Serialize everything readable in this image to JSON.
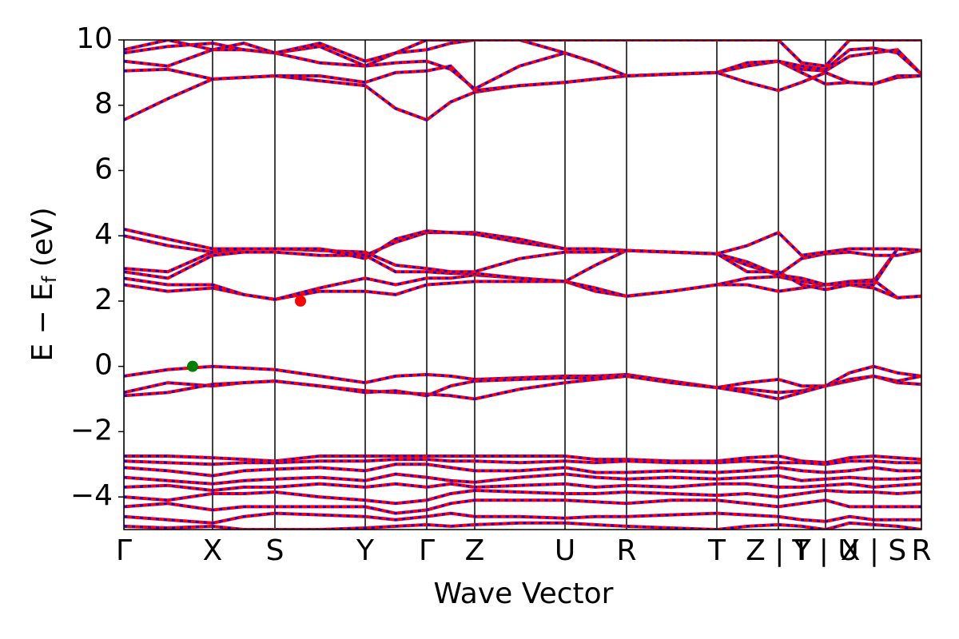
{
  "chart_data": {
    "type": "line",
    "xlabel": "Wave Vector",
    "ylabel": "E − E",
    "ylabel_sub": "f",
    "ylabel_unit": " (eV)",
    "xlim": [
      0,
      998
    ],
    "ylim": [
      -5,
      10
    ],
    "xticks": [
      {
        "value": 0,
        "label": "Γ"
      },
      {
        "value": 111,
        "label": "X"
      },
      {
        "value": 189,
        "label": "S"
      },
      {
        "value": 302,
        "label": "Y"
      },
      {
        "value": 379,
        "label": "Γ"
      },
      {
        "value": 439,
        "label": "Z"
      },
      {
        "value": 552,
        "label": "U"
      },
      {
        "value": 629,
        "label": "R"
      },
      {
        "value": 742,
        "label": "T"
      },
      {
        "value": 819,
        "label": "Z | Y"
      },
      {
        "value": 878,
        "label": "T | U"
      },
      {
        "value": 938,
        "label": "X | S"
      },
      {
        "value": 998,
        "label": "R"
      }
    ],
    "yticks": [
      {
        "value": -4,
        "label": "−4"
      },
      {
        "value": -2,
        "label": "−2"
      },
      0,
      2,
      4,
      6,
      8,
      10
    ],
    "color": "#ff0000",
    "dash_color": "#0000ff",
    "kline_color": "#000000",
    "x": [
      0,
      55,
      111,
      150,
      189,
      245,
      302,
      340,
      379,
      409,
      439,
      495,
      552,
      590,
      629,
      685,
      742,
      780,
      819,
      848,
      878,
      908,
      938,
      968,
      998
    ],
    "series": [
      {
        "values": [
          -0.3,
          -0.1,
          0,
          -0.05,
          -0.1,
          -0.3,
          -0.5,
          -0.3,
          -0.25,
          -0.3,
          -0.4,
          -0.35,
          -0.3,
          -0.3,
          -0.25,
          -0.45,
          -0.65,
          -0.5,
          -0.4,
          -0.6,
          -0.6,
          -0.2,
          0,
          -0.2,
          -0.3
        ]
      },
      {
        "values": [
          -0.8,
          -0.5,
          -0.6,
          -0.5,
          -0.45,
          -0.6,
          -0.75,
          -0.8,
          -0.85,
          -0.9,
          -1.0,
          -0.7,
          -0.5,
          -0.4,
          -0.3,
          -0.5,
          -0.65,
          -0.7,
          -0.8,
          -0.75,
          -0.6,
          -0.45,
          -0.3,
          -0.5,
          -0.55
        ]
      },
      {
        "values": [
          -0.9,
          -0.8,
          -0.55,
          -0.5,
          -0.45,
          -0.6,
          -0.8,
          -0.75,
          -0.9,
          -0.6,
          -0.45,
          -0.4,
          -0.35,
          -0.35,
          -0.3,
          -0.5,
          -0.65,
          -0.8,
          -1.0,
          -0.8,
          -0.6,
          -0.4,
          -0.3,
          -0.45,
          -0.3
        ]
      },
      {
        "values": [
          2.5,
          2.3,
          2.4,
          2.2,
          2.05,
          2.3,
          2.3,
          2.2,
          2.5,
          2.55,
          2.6,
          2.6,
          2.6,
          2.3,
          2.15,
          2.3,
          2.5,
          2.5,
          2.3,
          2.4,
          2.5,
          2.5,
          2.4,
          2.1,
          2.15
        ]
      },
      {
        "values": [
          2.7,
          2.5,
          2.5,
          2.2,
          2.05,
          2.4,
          2.7,
          2.5,
          2.7,
          2.7,
          2.8,
          2.7,
          2.6,
          2.4,
          2.15,
          2.3,
          2.5,
          2.7,
          2.75,
          2.6,
          2.5,
          2.6,
          2.65,
          2.1,
          2.15
        ]
      },
      {
        "values": [
          2.9,
          2.7,
          3.4,
          3.5,
          3.5,
          3.4,
          3.4,
          2.9,
          2.9,
          2.85,
          2.85,
          2.7,
          2.6,
          3.1,
          3.55,
          3.5,
          3.45,
          3.1,
          2.8,
          3.3,
          3.45,
          3.5,
          3.4,
          3.4,
          3.55
        ]
      },
      {
        "values": [
          3.0,
          2.9,
          3.5,
          3.6,
          3.6,
          3.55,
          3.5,
          3.1,
          3.0,
          2.9,
          2.9,
          3.3,
          3.5,
          3.5,
          3.55,
          3.5,
          3.45,
          3.7,
          4.1,
          3.4,
          3.5,
          3.6,
          3.6,
          3.6,
          3.55
        ]
      },
      {
        "values": [
          4.0,
          3.7,
          3.5,
          3.6,
          3.6,
          3.6,
          3.4,
          3.8,
          4.1,
          4.1,
          4.1,
          3.9,
          3.6,
          3.6,
          3.55,
          3.5,
          3.45,
          3.2,
          2.8,
          2.7,
          2.5,
          2.6,
          2.6,
          3.6,
          3.55
        ]
      },
      {
        "values": [
          4.2,
          3.9,
          3.6,
          3.6,
          3.6,
          3.6,
          3.3,
          3.9,
          4.15,
          4.1,
          4.05,
          3.8,
          3.6,
          3.6,
          3.55,
          3.5,
          3.45,
          2.9,
          2.9,
          2.5,
          2.35,
          2.5,
          2.5,
          3.6,
          3.55
        ]
      },
      {
        "values": [
          7.55,
          8.2,
          8.8,
          8.85,
          8.9,
          8.75,
          8.6,
          7.9,
          7.55,
          8.1,
          8.4,
          8.6,
          8.7,
          8.8,
          8.9,
          8.95,
          9.0,
          8.7,
          8.45,
          8.7,
          9.0,
          8.7,
          8.65,
          8.85,
          8.9
        ]
      },
      {
        "values": [
          9.05,
          9.1,
          8.8,
          8.85,
          8.9,
          8.9,
          8.7,
          9.0,
          9.05,
          9.2,
          8.45,
          8.6,
          8.7,
          8.8,
          8.9,
          8.95,
          9.0,
          9.2,
          9.35,
          9.0,
          8.65,
          8.7,
          8.65,
          8.9,
          8.9
        ]
      },
      {
        "values": [
          9.35,
          9.2,
          9.7,
          9.7,
          9.6,
          9.3,
          9.2,
          9.3,
          9.35,
          9.1,
          8.5,
          9.2,
          9.6,
          9.3,
          8.9,
          8.95,
          9.0,
          9.3,
          9.35,
          9.1,
          9.05,
          9.5,
          9.6,
          9.7,
          8.95
        ]
      },
      {
        "values": [
          9.6,
          9.8,
          9.9,
          9.7,
          9.6,
          9.8,
          9.2,
          9.6,
          9.7,
          9.9,
          10,
          10,
          9.6,
          9.3,
          8.9,
          8.95,
          9.0,
          9.3,
          9.35,
          9.2,
          9.1,
          9.7,
          9.75,
          9.6,
          8.95
        ]
      },
      {
        "values": [
          9.7,
          10,
          9.7,
          9.9,
          9.6,
          9.9,
          9.35,
          9.6,
          10,
          10,
          10,
          10,
          10,
          10,
          10,
          10,
          10,
          10,
          10,
          9.3,
          9.2,
          10,
          10,
          10,
          10
        ]
      },
      {
        "values": [
          -2.75,
          -2.75,
          -2.8,
          -2.85,
          -2.9,
          -2.75,
          -2.75,
          -2.75,
          -2.75,
          -2.75,
          -2.75,
          -2.75,
          -2.75,
          -2.85,
          -2.85,
          -2.9,
          -2.9,
          -2.8,
          -2.75,
          -2.9,
          -2.95,
          -2.8,
          -2.75,
          -2.8,
          -2.85
        ]
      },
      {
        "values": [
          -2.9,
          -2.95,
          -3.0,
          -2.95,
          -2.95,
          -2.9,
          -2.9,
          -2.85,
          -2.85,
          -2.9,
          -2.9,
          -2.95,
          -2.9,
          -2.95,
          -2.9,
          -2.95,
          -2.95,
          -2.9,
          -2.95,
          -2.95,
          -3.0,
          -2.9,
          -2.9,
          -2.95,
          -2.95
        ]
      },
      {
        "values": [
          -3.1,
          -3.2,
          -3.35,
          -3.2,
          -3.15,
          -3.1,
          -3.2,
          -3.0,
          -3.0,
          -3.1,
          -3.2,
          -3.2,
          -3.1,
          -3.25,
          -3.25,
          -3.2,
          -3.25,
          -3.2,
          -3.1,
          -3.2,
          -3.25,
          -3.2,
          -3.1,
          -3.2,
          -3.2
        ]
      },
      {
        "values": [
          -3.4,
          -3.5,
          -3.6,
          -3.5,
          -3.45,
          -3.4,
          -3.5,
          -3.3,
          -3.4,
          -3.5,
          -3.55,
          -3.4,
          -3.3,
          -3.4,
          -3.45,
          -3.4,
          -3.45,
          -3.4,
          -3.35,
          -3.5,
          -3.45,
          -3.4,
          -3.45,
          -3.45,
          -3.4
        ]
      },
      {
        "values": [
          -3.7,
          -3.65,
          -3.8,
          -3.7,
          -3.7,
          -3.6,
          -3.7,
          -3.6,
          -3.7,
          -3.6,
          -3.7,
          -3.65,
          -3.6,
          -3.7,
          -3.65,
          -3.7,
          -3.6,
          -3.6,
          -3.7,
          -3.7,
          -3.65,
          -3.6,
          -3.7,
          -3.65,
          -3.6
        ]
      },
      {
        "values": [
          -4.0,
          -4.1,
          -3.9,
          -3.9,
          -3.85,
          -4.0,
          -4.1,
          -4.2,
          -4.1,
          -3.9,
          -3.8,
          -3.85,
          -3.9,
          -3.9,
          -3.85,
          -3.9,
          -3.95,
          -3.9,
          -4.0,
          -3.9,
          -3.8,
          -3.85,
          -3.85,
          -3.9,
          -3.85
        ]
      },
      {
        "values": [
          -4.3,
          -4.2,
          -4.4,
          -4.3,
          -4.3,
          -4.3,
          -4.3,
          -4.5,
          -4.4,
          -4.2,
          -4.1,
          -4.1,
          -4.1,
          -4.15,
          -4.2,
          -4.1,
          -4.1,
          -4.2,
          -4.3,
          -4.2,
          -4.1,
          -4.3,
          -4.3,
          -4.3,
          -4.3
        ]
      },
      {
        "values": [
          -4.6,
          -4.7,
          -4.8,
          -4.6,
          -4.5,
          -4.55,
          -4.6,
          -4.7,
          -4.6,
          -4.5,
          -4.6,
          -4.6,
          -4.65,
          -4.6,
          -4.6,
          -4.55,
          -4.5,
          -4.55,
          -4.6,
          -4.7,
          -4.75,
          -4.6,
          -4.7,
          -4.7,
          -4.7
        ]
      },
      {
        "values": [
          -4.9,
          -4.95,
          -4.9,
          -5,
          -5,
          -5,
          -4.95,
          -4.9,
          -4.85,
          -4.9,
          -4.85,
          -4.8,
          -4.8,
          -4.85,
          -4.9,
          -4.95,
          -5,
          -4.9,
          -4.85,
          -4.9,
          -5,
          -4.8,
          -4.85,
          -4.9,
          -5
        ]
      }
    ],
    "points": {
      "x": [
        86,
        221
      ],
      "y": [
        0,
        2
      ],
      "colors": [
        "#008000",
        "#ff0000"
      ]
    }
  }
}
